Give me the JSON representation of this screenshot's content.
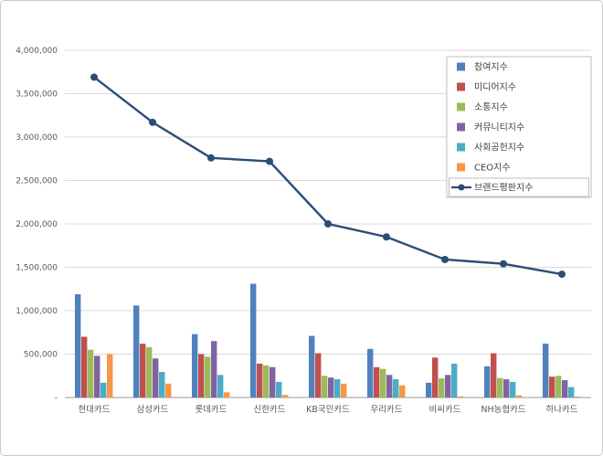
{
  "chart_data": {
    "type": "bar",
    "subtype": "clustered-bar-with-line",
    "title": "",
    "xlabel": "",
    "ylabel": "",
    "grid": true,
    "legend_position": "top-right-overlay",
    "categories": [
      "현대카드",
      "삼성카드",
      "롯데카드",
      "신한카드",
      "KB국민카드",
      "우리카드",
      "비씨카드",
      "NH농협카드",
      "하나카드"
    ],
    "bar_series": [
      {
        "name": "참여지수",
        "color": "#4F81BD",
        "values": [
          1190000,
          1060000,
          730000,
          1310000,
          710000,
          560000,
          170000,
          360000,
          620000
        ]
      },
      {
        "name": "미디어지수",
        "color": "#C0504D",
        "values": [
          700000,
          620000,
          500000,
          390000,
          510000,
          350000,
          460000,
          510000,
          240000
        ]
      },
      {
        "name": "소통지수",
        "color": "#9BBB59",
        "values": [
          550000,
          580000,
          470000,
          370000,
          250000,
          330000,
          220000,
          225000,
          250000
        ]
      },
      {
        "name": "커뮤니티지수",
        "color": "#8064A2",
        "values": [
          480000,
          450000,
          650000,
          350000,
          230000,
          260000,
          260000,
          210000,
          200000
        ]
      },
      {
        "name": "사회공헌지수",
        "color": "#4BACC6",
        "values": [
          170000,
          295000,
          260000,
          180000,
          210000,
          210000,
          390000,
          180000,
          120000
        ]
      },
      {
        "name": "CEO지수",
        "color": "#F79646",
        "values": [
          500000,
          160000,
          60000,
          30000,
          160000,
          140000,
          12000,
          25000,
          12000
        ]
      }
    ],
    "line_series": {
      "name": "브랜드평판지수",
      "color": "#2C4D75",
      "values": [
        3690000,
        3170000,
        2760000,
        2720000,
        2000000,
        1850000,
        1590000,
        1540000,
        1420000
      ]
    },
    "y_axis": {
      "min": 0,
      "max": 4000000,
      "step": 500000,
      "tick_labels": [
        "-",
        "500,000",
        "1,000,000",
        "1,500,000",
        "2,000,000",
        "2,500,000",
        "3,000,000",
        "3,500,000",
        "4,000,000"
      ]
    },
    "colors": {
      "gridline": "#d9d9d9",
      "axis_line": "#9a9a9a",
      "tick_text": "#595959",
      "legend_border": "#bfbfbf",
      "legend_text": "#404040",
      "page_border": "#c9c9c9"
    }
  }
}
